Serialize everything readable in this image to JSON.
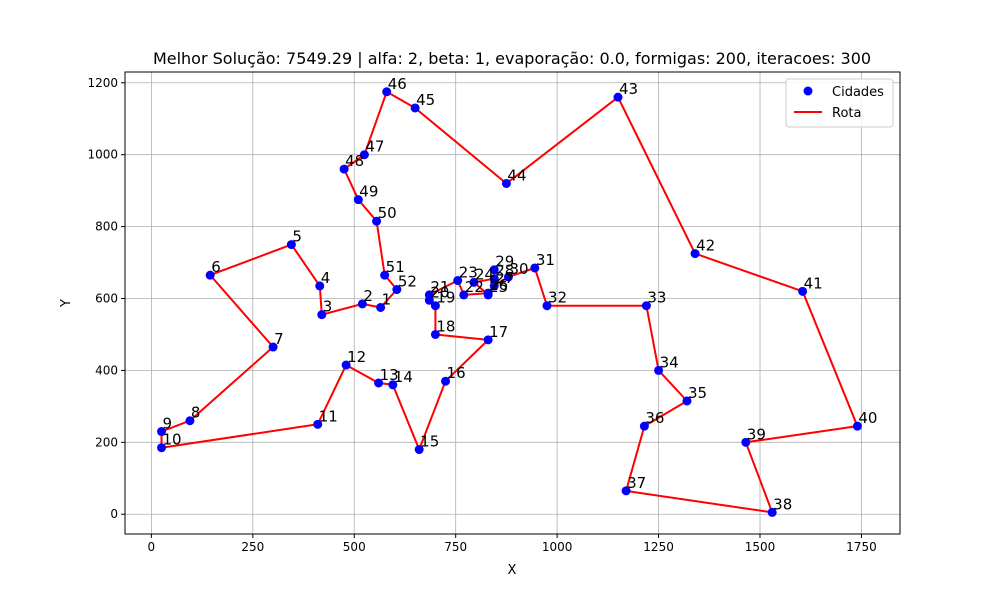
{
  "chart_data": {
    "type": "scatter",
    "title": "Melhor Solução: 7549.29 | alfa: 2, beta: 1, evaporação: 0.0, formigas: 200, iteracoes: 300",
    "xlabel": "X",
    "ylabel": "Y",
    "xlim": [
      -65,
      1845
    ],
    "ylim": [
      -55,
      1230
    ],
    "xticks": [
      0,
      250,
      500,
      750,
      1000,
      1250,
      1500,
      1750
    ],
    "yticks": [
      0,
      200,
      400,
      600,
      800,
      1000,
      1200
    ],
    "grid": true,
    "legend_position": "top-right",
    "series": [
      {
        "name": "Cidades",
        "kind": "points",
        "color": "#0000ff",
        "points": [
          {
            "label": "1",
            "x": 565,
            "y": 575
          },
          {
            "label": "2",
            "x": 520,
            "y": 585
          },
          {
            "label": "3",
            "x": 420,
            "y": 555
          },
          {
            "label": "4",
            "x": 415,
            "y": 635
          },
          {
            "label": "5",
            "x": 345,
            "y": 750
          },
          {
            "label": "6",
            "x": 145,
            "y": 665
          },
          {
            "label": "7",
            "x": 300,
            "y": 465
          },
          {
            "label": "8",
            "x": 95,
            "y": 260
          },
          {
            "label": "9",
            "x": 25,
            "y": 230
          },
          {
            "label": "10",
            "x": 25,
            "y": 185
          },
          {
            "label": "11",
            "x": 410,
            "y": 250
          },
          {
            "label": "12",
            "x": 480,
            "y": 415
          },
          {
            "label": "13",
            "x": 560,
            "y": 365
          },
          {
            "label": "14",
            "x": 595,
            "y": 360
          },
          {
            "label": "15",
            "x": 660,
            "y": 180
          },
          {
            "label": "16",
            "x": 725,
            "y": 370
          },
          {
            "label": "17",
            "x": 830,
            "y": 485
          },
          {
            "label": "18",
            "x": 700,
            "y": 500
          },
          {
            "label": "19",
            "x": 700,
            "y": 580
          },
          {
            "label": "20",
            "x": 685,
            "y": 595
          },
          {
            "label": "21",
            "x": 685,
            "y": 610
          },
          {
            "label": "22",
            "x": 770,
            "y": 610
          },
          {
            "label": "23",
            "x": 755,
            "y": 650
          },
          {
            "label": "24",
            "x": 795,
            "y": 645
          },
          {
            "label": "25",
            "x": 830,
            "y": 610
          },
          {
            "label": "26",
            "x": 830,
            "y": 615
          },
          {
            "label": "27",
            "x": 845,
            "y": 635
          },
          {
            "label": "28",
            "x": 845,
            "y": 655
          },
          {
            "label": "29",
            "x": 845,
            "y": 680
          },
          {
            "label": "30",
            "x": 880,
            "y": 660
          },
          {
            "label": "31",
            "x": 945,
            "y": 685
          },
          {
            "label": "32",
            "x": 975,
            "y": 580
          },
          {
            "label": "33",
            "x": 1220,
            "y": 580
          },
          {
            "label": "34",
            "x": 1250,
            "y": 400
          },
          {
            "label": "35",
            "x": 1320,
            "y": 315
          },
          {
            "label": "36",
            "x": 1215,
            "y": 245
          },
          {
            "label": "37",
            "x": 1170,
            "y": 65
          },
          {
            "label": "38",
            "x": 1530,
            "y": 5
          },
          {
            "label": "39",
            "x": 1465,
            "y": 200
          },
          {
            "label": "40",
            "x": 1740,
            "y": 245
          },
          {
            "label": "41",
            "x": 1605,
            "y": 620
          },
          {
            "label": "42",
            "x": 1340,
            "y": 725
          },
          {
            "label": "43",
            "x": 1150,
            "y": 1160
          },
          {
            "label": "44",
            "x": 875,
            "y": 920
          },
          {
            "label": "45",
            "x": 650,
            "y": 1130
          },
          {
            "label": "46",
            "x": 580,
            "y": 1175
          },
          {
            "label": "47",
            "x": 525,
            "y": 1000
          },
          {
            "label": "48",
            "x": 475,
            "y": 960
          },
          {
            "label": "49",
            "x": 510,
            "y": 875
          },
          {
            "label": "50",
            "x": 555,
            "y": 815
          },
          {
            "label": "51",
            "x": 575,
            "y": 665
          },
          {
            "label": "52",
            "x": 605,
            "y": 625
          }
        ]
      },
      {
        "name": "Rota",
        "kind": "route",
        "color": "#ff0000",
        "order": [
          "1",
          "2",
          "3",
          "4",
          "5",
          "6",
          "7",
          "8",
          "9",
          "10",
          "11",
          "12",
          "13",
          "14",
          "15",
          "16",
          "17",
          "18",
          "19",
          "20",
          "21",
          "23",
          "22",
          "26",
          "25",
          "24",
          "28",
          "29",
          "27",
          "30",
          "31",
          "32",
          "33",
          "34",
          "35",
          "36",
          "37",
          "38",
          "39",
          "40",
          "41",
          "42",
          "43",
          "44",
          "45",
          "46",
          "47",
          "48",
          "49",
          "50",
          "51",
          "52",
          "1"
        ]
      }
    ]
  }
}
